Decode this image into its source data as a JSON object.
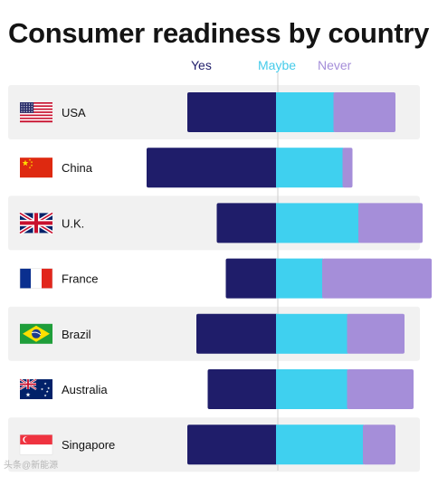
{
  "header": {
    "title": "Consumer readiness by country"
  },
  "legend": {
    "yes": "Yes",
    "maybe": "Maybe",
    "never": "Never"
  },
  "colors": {
    "yes": "#1f1d6a",
    "maybe": "#3fd0ef",
    "never": "#a58ed9",
    "row_band": "#f1f1f1",
    "center_line": "#cfcfcf"
  },
  "chart_data": {
    "type": "bar",
    "stacked": true,
    "orientation": "horizontal",
    "diverging": true,
    "categories": [
      "USA",
      "China",
      "U.K.",
      "France",
      "Brazil",
      "Australia",
      "Singapore"
    ],
    "flags": [
      "flag-usa-icon",
      "flag-china-icon",
      "flag-uk-icon",
      "flag-france-icon",
      "flag-brazil-icon",
      "flag-australia-icon",
      "flag-singapore-icon"
    ],
    "series": [
      {
        "name": "Yes",
        "values": [
          40,
          58,
          27,
          23,
          36,
          31,
          40
        ]
      },
      {
        "name": "Maybe",
        "values": [
          25,
          29,
          36,
          20,
          31,
          31,
          38
        ]
      },
      {
        "name": "Never",
        "values": [
          27,
          4,
          28,
          48,
          25,
          29,
          14
        ]
      }
    ],
    "title": "Consumer readiness by country",
    "xlabel": "",
    "ylabel": "",
    "legend_position": "top",
    "grid": false
  },
  "watermark": "头条@新能源"
}
